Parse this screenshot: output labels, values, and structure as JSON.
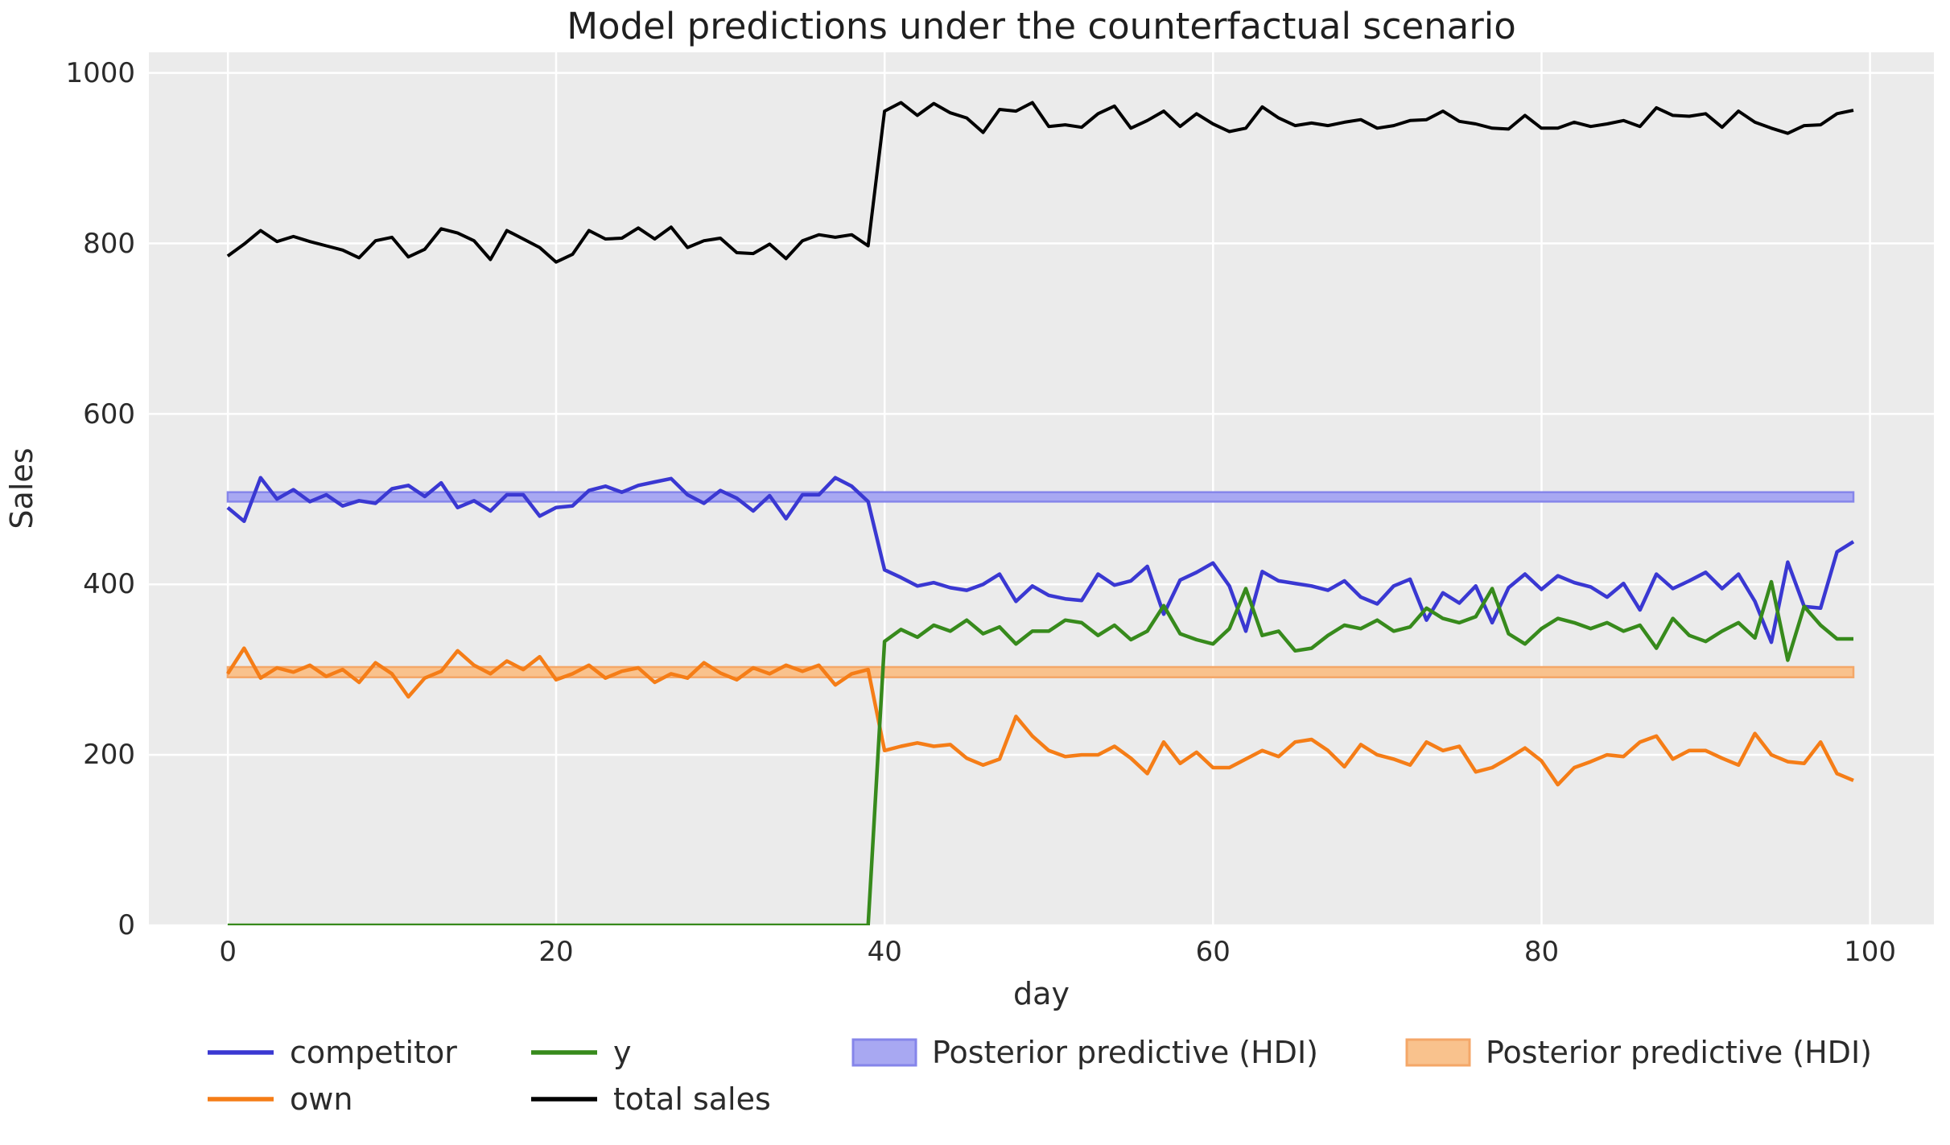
{
  "title": "Model predictions under the counterfactual scenario",
  "chart_data": {
    "type": "line",
    "title": "Model predictions under the counterfactual scenario",
    "xlabel": "day",
    "ylabel": "Sales",
    "x_ticks": [
      0,
      20,
      40,
      60,
      80,
      100
    ],
    "y_ticks": [
      0,
      200,
      400,
      600,
      800,
      1000
    ],
    "xlim": [
      -4.8,
      103.9
    ],
    "ylim": [
      0,
      1024
    ],
    "grid": true,
    "plot_background": "#ebebeb",
    "grid_color": "#ffffff",
    "x_start": 0,
    "x_step": 1,
    "n_points": 100,
    "intervention_day": 40,
    "series": [
      {
        "name": "competitor",
        "color": "#3a38d2",
        "width": 4.5,
        "values": [
          490,
          474,
          525,
          500,
          511,
          497,
          505,
          492,
          498,
          495,
          512,
          516,
          503,
          519,
          490,
          498,
          486,
          505,
          505,
          480,
          490,
          492,
          510,
          515,
          508,
          516,
          520,
          524,
          505,
          495,
          510,
          501,
          486,
          504,
          477,
          505,
          505,
          525,
          515,
          497,
          417,
          408,
          398,
          402,
          396,
          393,
          400,
          412,
          380,
          398,
          387,
          383,
          381,
          412,
          399,
          404,
          421,
          365,
          405,
          414,
          425,
          398,
          345,
          415,
          404,
          401,
          398,
          393,
          404,
          385,
          377,
          398,
          406,
          358,
          390,
          378,
          398,
          355,
          396,
          412,
          394,
          410,
          402,
          397,
          385,
          401,
          370,
          412,
          395,
          404,
          414,
          395,
          412,
          380,
          332,
          426,
          374,
          372,
          438,
          450
        ]
      },
      {
        "name": "own",
        "color": "#f57d17",
        "width": 4.5,
        "values": [
          295,
          325,
          290,
          302,
          297,
          305,
          292,
          300,
          285,
          308,
          295,
          268,
          290,
          298,
          322,
          305,
          295,
          310,
          300,
          315,
          288,
          295,
          305,
          290,
          298,
          302,
          285,
          295,
          290,
          308,
          296,
          288,
          302,
          295,
          305,
          298,
          305,
          282,
          295,
          300,
          205,
          210,
          214,
          210,
          212,
          196,
          188,
          195,
          245,
          222,
          205,
          198,
          200,
          200,
          210,
          196,
          178,
          215,
          190,
          203,
          185,
          185,
          195,
          205,
          198,
          215,
          218,
          205,
          186,
          212,
          200,
          195,
          188,
          215,
          205,
          210,
          180,
          185,
          196,
          208,
          193,
          165,
          185,
          192,
          200,
          198,
          215,
          222,
          195,
          205,
          205,
          196,
          188,
          225,
          200,
          192,
          190,
          215,
          178,
          170
        ]
      },
      {
        "name": "y",
        "color": "#378a1c",
        "width": 4.5,
        "values": [
          0,
          0,
          0,
          0,
          0,
          0,
          0,
          0,
          0,
          0,
          0,
          0,
          0,
          0,
          0,
          0,
          0,
          0,
          0,
          0,
          0,
          0,
          0,
          0,
          0,
          0,
          0,
          0,
          0,
          0,
          0,
          0,
          0,
          0,
          0,
          0,
          0,
          0,
          0,
          0,
          333,
          347,
          338,
          352,
          345,
          358,
          342,
          350,
          330,
          345,
          345,
          358,
          355,
          340,
          352,
          335,
          345,
          375,
          342,
          335,
          330,
          348,
          395,
          340,
          345,
          322,
          325,
          340,
          352,
          348,
          358,
          345,
          350,
          372,
          360,
          355,
          362,
          395,
          342,
          330,
          348,
          360,
          355,
          348,
          355,
          345,
          352,
          325,
          360,
          340,
          333,
          345,
          355,
          337,
          403,
          311,
          374,
          352,
          336,
          336
        ]
      },
      {
        "name": "total sales",
        "color": "#000000",
        "width": 4,
        "values": [
          785,
          799,
          815,
          802,
          808,
          802,
          797,
          792,
          783,
          803,
          807,
          784,
          793,
          817,
          812,
          803,
          781,
          815,
          805,
          795,
          778,
          787,
          815,
          805,
          806,
          818,
          805,
          819,
          795,
          803,
          806,
          789,
          788,
          799,
          782,
          803,
          810,
          807,
          810,
          797,
          955,
          965,
          950,
          964,
          953,
          947,
          930,
          957,
          955,
          965,
          937,
          939,
          936,
          952,
          961,
          935,
          944,
          955,
          937,
          952,
          940,
          931,
          935,
          960,
          947,
          938,
          941,
          938,
          942,
          945,
          935,
          938,
          944,
          945,
          955,
          943,
          940,
          935,
          934,
          950,
          935,
          935,
          942,
          937,
          940,
          944,
          937,
          959,
          950,
          949,
          952,
          936,
          955,
          942,
          935,
          929,
          938,
          939,
          952,
          956
        ]
      }
    ],
    "bands": [
      {
        "name": "Posterior predictive (HDI)",
        "series": "competitor",
        "fill": "#a8a8f2",
        "edge": "#8585ea",
        "lo": 497,
        "hi": 508,
        "x_start": 0,
        "x_end": 99
      },
      {
        "name": "Posterior predictive (HDI)",
        "series": "own",
        "fill": "#f9c28d",
        "edge": "#f4a768",
        "lo": 291,
        "hi": 303,
        "x_start": 0,
        "x_end": 99
      }
    ],
    "legend_position": "below"
  },
  "legend": {
    "items": [
      {
        "label": "competitor",
        "kind": "line",
        "color": "#3a38d2"
      },
      {
        "label": "own",
        "kind": "line",
        "color": "#f57d17"
      },
      {
        "label": "y",
        "kind": "line",
        "color": "#378a1c"
      },
      {
        "label": "total sales",
        "kind": "line",
        "color": "#000000"
      },
      {
        "label": "Posterior predictive (HDI)",
        "kind": "patch",
        "color": "#a8a8f2",
        "edge": "#8585ea"
      },
      {
        "label": "Posterior predictive (HDI)",
        "kind": "patch",
        "color": "#f9c28d",
        "edge": "#f4a768"
      }
    ]
  }
}
